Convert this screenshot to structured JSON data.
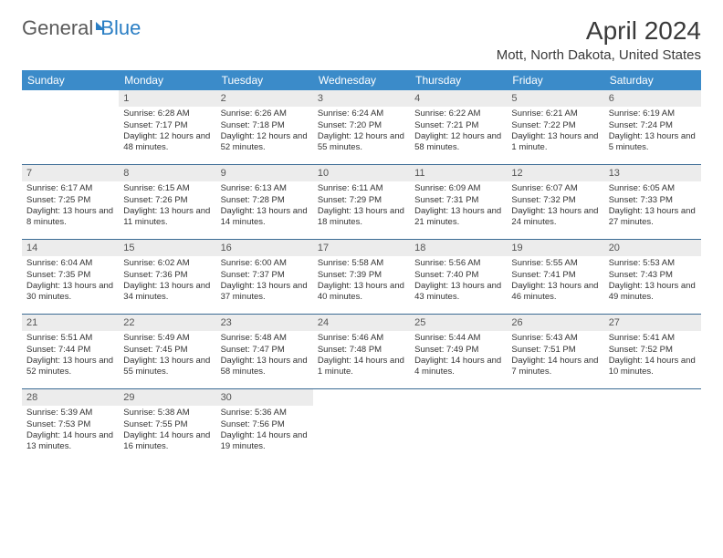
{
  "brand": {
    "part1": "General",
    "part2": "Blue"
  },
  "title": "April 2024",
  "location": "Mott, North Dakota, United States",
  "colors": {
    "header_bg": "#3b8bc9",
    "header_text": "#ffffff",
    "daynum_bg": "#ececec",
    "daynum_text": "#555555",
    "body_text": "#333333",
    "week_border": "#3b6b94",
    "brand_gray": "#5a5a5a",
    "brand_blue": "#2a7ec4"
  },
  "weekdays": [
    "Sunday",
    "Monday",
    "Tuesday",
    "Wednesday",
    "Thursday",
    "Friday",
    "Saturday"
  ],
  "weeks": [
    [
      {
        "n": "",
        "sr": "",
        "ss": "",
        "dl": ""
      },
      {
        "n": "1",
        "sr": "Sunrise: 6:28 AM",
        "ss": "Sunset: 7:17 PM",
        "dl": "Daylight: 12 hours and 48 minutes."
      },
      {
        "n": "2",
        "sr": "Sunrise: 6:26 AM",
        "ss": "Sunset: 7:18 PM",
        "dl": "Daylight: 12 hours and 52 minutes."
      },
      {
        "n": "3",
        "sr": "Sunrise: 6:24 AM",
        "ss": "Sunset: 7:20 PM",
        "dl": "Daylight: 12 hours and 55 minutes."
      },
      {
        "n": "4",
        "sr": "Sunrise: 6:22 AM",
        "ss": "Sunset: 7:21 PM",
        "dl": "Daylight: 12 hours and 58 minutes."
      },
      {
        "n": "5",
        "sr": "Sunrise: 6:21 AM",
        "ss": "Sunset: 7:22 PM",
        "dl": "Daylight: 13 hours and 1 minute."
      },
      {
        "n": "6",
        "sr": "Sunrise: 6:19 AM",
        "ss": "Sunset: 7:24 PM",
        "dl": "Daylight: 13 hours and 5 minutes."
      }
    ],
    [
      {
        "n": "7",
        "sr": "Sunrise: 6:17 AM",
        "ss": "Sunset: 7:25 PM",
        "dl": "Daylight: 13 hours and 8 minutes."
      },
      {
        "n": "8",
        "sr": "Sunrise: 6:15 AM",
        "ss": "Sunset: 7:26 PM",
        "dl": "Daylight: 13 hours and 11 minutes."
      },
      {
        "n": "9",
        "sr": "Sunrise: 6:13 AM",
        "ss": "Sunset: 7:28 PM",
        "dl": "Daylight: 13 hours and 14 minutes."
      },
      {
        "n": "10",
        "sr": "Sunrise: 6:11 AM",
        "ss": "Sunset: 7:29 PM",
        "dl": "Daylight: 13 hours and 18 minutes."
      },
      {
        "n": "11",
        "sr": "Sunrise: 6:09 AM",
        "ss": "Sunset: 7:31 PM",
        "dl": "Daylight: 13 hours and 21 minutes."
      },
      {
        "n": "12",
        "sr": "Sunrise: 6:07 AM",
        "ss": "Sunset: 7:32 PM",
        "dl": "Daylight: 13 hours and 24 minutes."
      },
      {
        "n": "13",
        "sr": "Sunrise: 6:05 AM",
        "ss": "Sunset: 7:33 PM",
        "dl": "Daylight: 13 hours and 27 minutes."
      }
    ],
    [
      {
        "n": "14",
        "sr": "Sunrise: 6:04 AM",
        "ss": "Sunset: 7:35 PM",
        "dl": "Daylight: 13 hours and 30 minutes."
      },
      {
        "n": "15",
        "sr": "Sunrise: 6:02 AM",
        "ss": "Sunset: 7:36 PM",
        "dl": "Daylight: 13 hours and 34 minutes."
      },
      {
        "n": "16",
        "sr": "Sunrise: 6:00 AM",
        "ss": "Sunset: 7:37 PM",
        "dl": "Daylight: 13 hours and 37 minutes."
      },
      {
        "n": "17",
        "sr": "Sunrise: 5:58 AM",
        "ss": "Sunset: 7:39 PM",
        "dl": "Daylight: 13 hours and 40 minutes."
      },
      {
        "n": "18",
        "sr": "Sunrise: 5:56 AM",
        "ss": "Sunset: 7:40 PM",
        "dl": "Daylight: 13 hours and 43 minutes."
      },
      {
        "n": "19",
        "sr": "Sunrise: 5:55 AM",
        "ss": "Sunset: 7:41 PM",
        "dl": "Daylight: 13 hours and 46 minutes."
      },
      {
        "n": "20",
        "sr": "Sunrise: 5:53 AM",
        "ss": "Sunset: 7:43 PM",
        "dl": "Daylight: 13 hours and 49 minutes."
      }
    ],
    [
      {
        "n": "21",
        "sr": "Sunrise: 5:51 AM",
        "ss": "Sunset: 7:44 PM",
        "dl": "Daylight: 13 hours and 52 minutes."
      },
      {
        "n": "22",
        "sr": "Sunrise: 5:49 AM",
        "ss": "Sunset: 7:45 PM",
        "dl": "Daylight: 13 hours and 55 minutes."
      },
      {
        "n": "23",
        "sr": "Sunrise: 5:48 AM",
        "ss": "Sunset: 7:47 PM",
        "dl": "Daylight: 13 hours and 58 minutes."
      },
      {
        "n": "24",
        "sr": "Sunrise: 5:46 AM",
        "ss": "Sunset: 7:48 PM",
        "dl": "Daylight: 14 hours and 1 minute."
      },
      {
        "n": "25",
        "sr": "Sunrise: 5:44 AM",
        "ss": "Sunset: 7:49 PM",
        "dl": "Daylight: 14 hours and 4 minutes."
      },
      {
        "n": "26",
        "sr": "Sunrise: 5:43 AM",
        "ss": "Sunset: 7:51 PM",
        "dl": "Daylight: 14 hours and 7 minutes."
      },
      {
        "n": "27",
        "sr": "Sunrise: 5:41 AM",
        "ss": "Sunset: 7:52 PM",
        "dl": "Daylight: 14 hours and 10 minutes."
      }
    ],
    [
      {
        "n": "28",
        "sr": "Sunrise: 5:39 AM",
        "ss": "Sunset: 7:53 PM",
        "dl": "Daylight: 14 hours and 13 minutes."
      },
      {
        "n": "29",
        "sr": "Sunrise: 5:38 AM",
        "ss": "Sunset: 7:55 PM",
        "dl": "Daylight: 14 hours and 16 minutes."
      },
      {
        "n": "30",
        "sr": "Sunrise: 5:36 AM",
        "ss": "Sunset: 7:56 PM",
        "dl": "Daylight: 14 hours and 19 minutes."
      },
      {
        "n": "",
        "sr": "",
        "ss": "",
        "dl": ""
      },
      {
        "n": "",
        "sr": "",
        "ss": "",
        "dl": ""
      },
      {
        "n": "",
        "sr": "",
        "ss": "",
        "dl": ""
      },
      {
        "n": "",
        "sr": "",
        "ss": "",
        "dl": ""
      }
    ]
  ]
}
